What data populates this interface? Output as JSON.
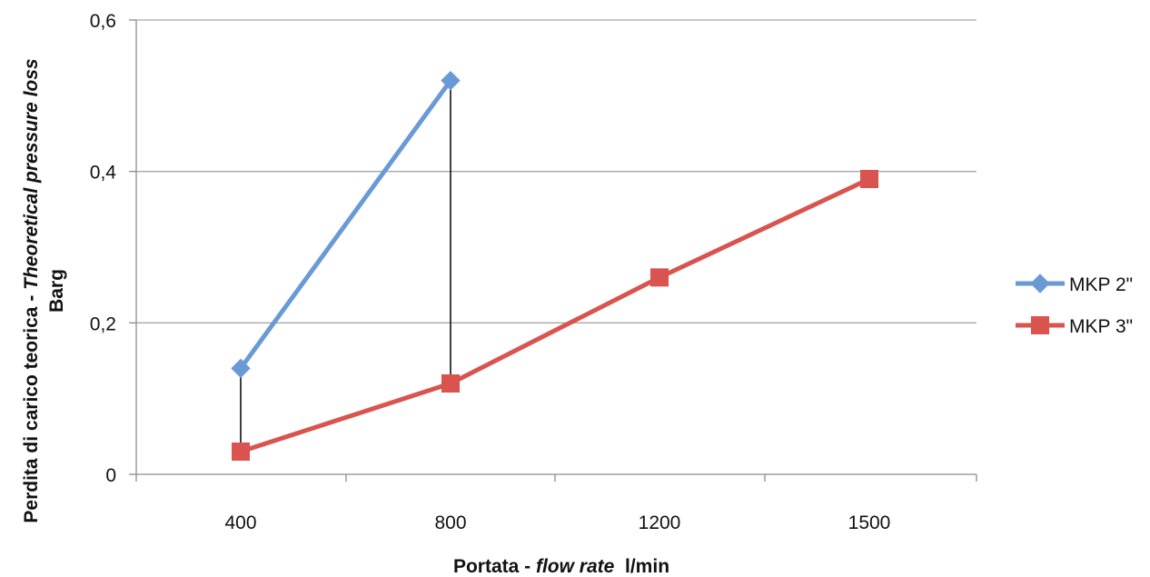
{
  "chart_data": {
    "type": "line",
    "categories": [
      "400",
      "800",
      "1200",
      "1500"
    ],
    "yticks": [
      "0",
      "0,2",
      "0,4",
      "0,6"
    ],
    "ylim": [
      0,
      0.6
    ],
    "grid": true,
    "legend_position": "right",
    "xlabel": {
      "part1": "Portata - ",
      "part2": "flow rate",
      "part3": "  l/min"
    },
    "ylabel": {
      "line1_part1": "Perdita di carico teorica - ",
      "line1_part2": "Theoretical pressure loss",
      "line2": "Barg"
    },
    "series": [
      {
        "name": "MKP 2\"",
        "values": [
          0.14,
          0.52,
          null,
          null
        ],
        "color": "#6a9ad6",
        "marker": "diamond"
      },
      {
        "name": "MKP 3\"",
        "values": [
          0.03,
          0.12,
          0.26,
          0.39
        ],
        "color": "#d9534f",
        "marker": "square"
      }
    ],
    "drop_lines": {
      "color": "#000000"
    }
  }
}
